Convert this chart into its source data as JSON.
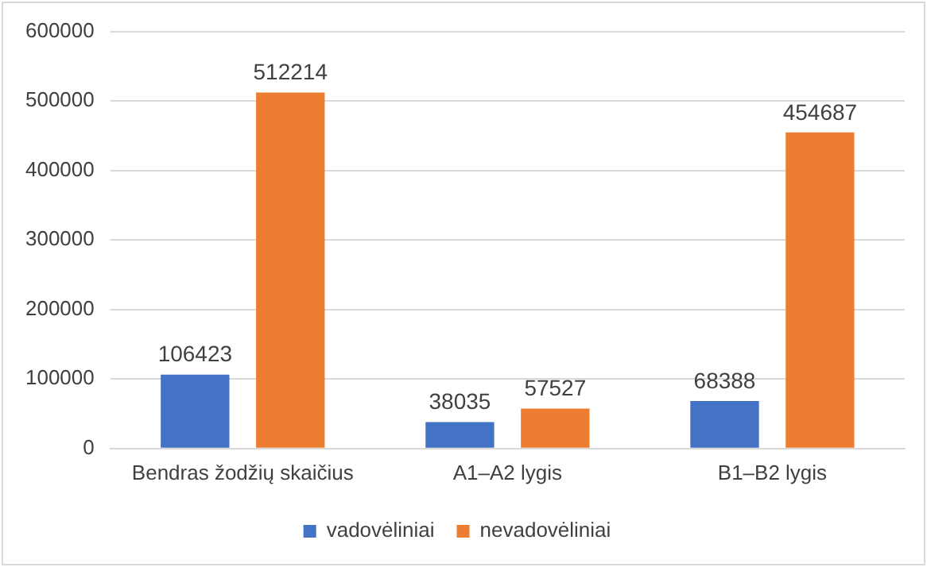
{
  "chart_data": {
    "type": "bar",
    "categories": [
      "Bendras žodžių skaičius",
      "A1–A2 lygis",
      "B1–B2 lygis"
    ],
    "series": [
      {
        "name": "vadovėliniai",
        "color": "#4472c4",
        "values": [
          106423,
          38035,
          68388
        ]
      },
      {
        "name": "nevadovėliniai",
        "color": "#ed7d31",
        "values": [
          512214,
          57527,
          454687
        ]
      }
    ],
    "ylim": [
      0,
      600000
    ],
    "yticks": [
      0,
      100000,
      200000,
      300000,
      400000,
      500000,
      600000
    ],
    "grid": "y",
    "legend": "bottom",
    "data_labels": true
  }
}
